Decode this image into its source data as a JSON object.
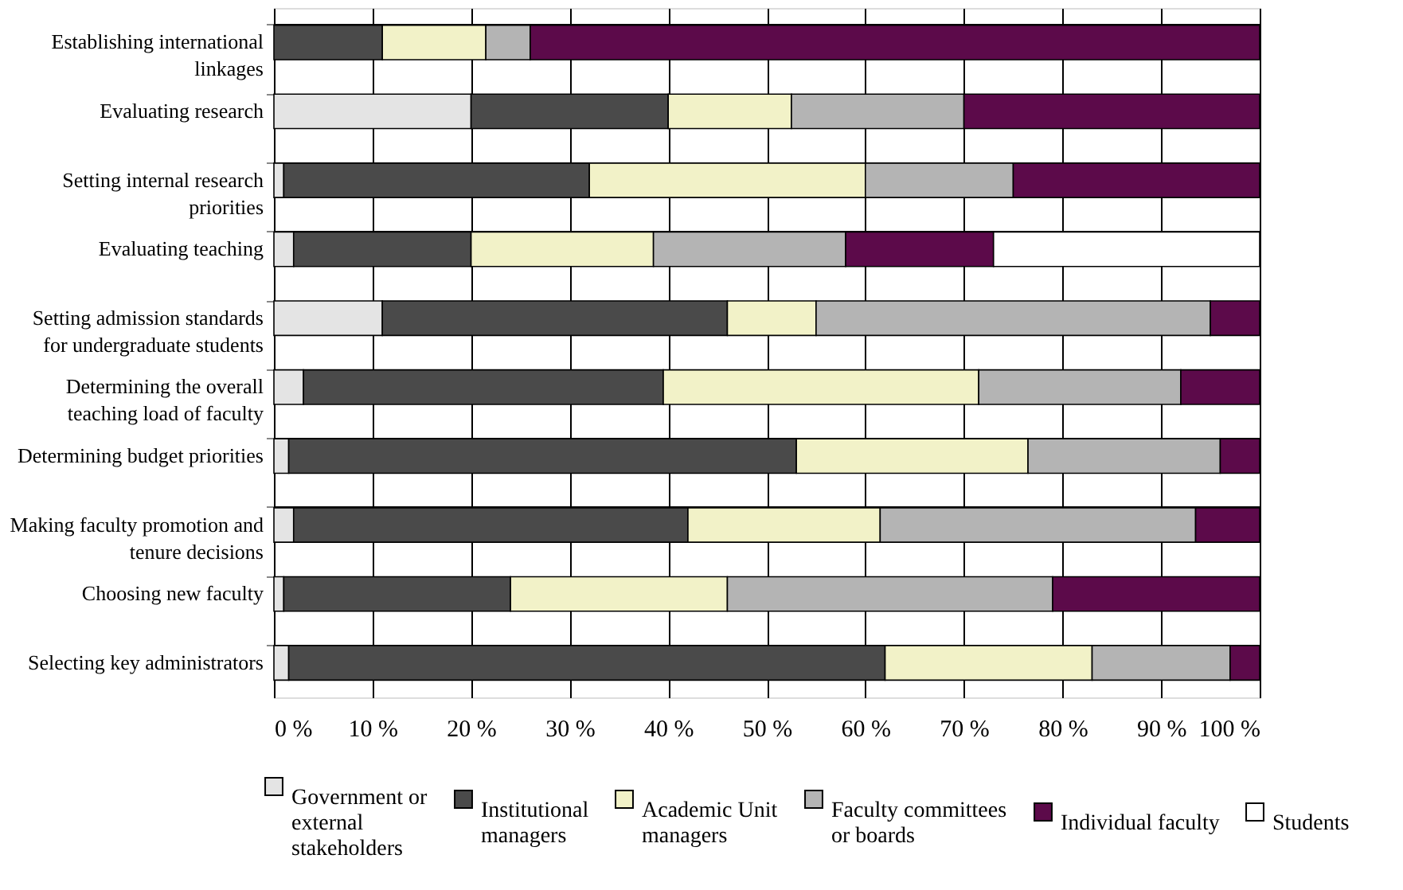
{
  "chart_data": {
    "type": "bar",
    "orientation": "horizontal",
    "stacked": true,
    "categories": [
      "Establishing international linkages",
      "Evaluating research",
      "Setting internal research priorities",
      "Evaluating teaching",
      "Setting admission standards for undergraduate students",
      "Determining the overall teaching load of faculty",
      "Determining budget priorities",
      "Making faculty promotion and tenure decisions",
      "Choosing new faculty",
      "Selecting key administrators"
    ],
    "series": [
      {
        "name": "Government or external stakeholders",
        "color": "#e4e4e4",
        "values": [
          0,
          20,
          1,
          2,
          11,
          3,
          1.5,
          2,
          1,
          1.5
        ]
      },
      {
        "name": "Institutional managers",
        "color": "#4a4a4a",
        "values": [
          11,
          20,
          31,
          18,
          35,
          36.5,
          51.5,
          40,
          23,
          60.5
        ]
      },
      {
        "name": "Academic Unit managers",
        "color": "#f2f2c8",
        "values": [
          10.5,
          12.5,
          28,
          18.5,
          9,
          32,
          23.5,
          19.5,
          22,
          21
        ]
      },
      {
        "name": "Faculty committees or boards",
        "color": "#b4b4b4",
        "values": [
          4.5,
          17.5,
          15,
          19.5,
          40,
          20.5,
          19.5,
          32,
          33,
          14
        ]
      },
      {
        "name": "Individual faculty",
        "color": "#5c0a4a",
        "values": [
          74,
          30,
          25,
          15,
          5,
          8,
          4,
          6.5,
          21,
          3
        ]
      },
      {
        "name": "Students",
        "color": "#ffffff",
        "values": [
          0,
          0,
          0,
          27,
          0,
          0,
          0,
          0,
          0,
          0
        ]
      }
    ],
    "xlim": [
      0,
      100
    ],
    "xticks": [
      {
        "value": 0,
        "label": "0 %"
      },
      {
        "value": 10,
        "label": "10 %"
      },
      {
        "value": 20,
        "label": "20 %"
      },
      {
        "value": 30,
        "label": "30 %"
      },
      {
        "value": 40,
        "label": "40 %"
      },
      {
        "value": 50,
        "label": "50 %"
      },
      {
        "value": 60,
        "label": "60 %"
      },
      {
        "value": 70,
        "label": "70 %"
      },
      {
        "value": 80,
        "label": "80 %"
      },
      {
        "value": 90,
        "label": "90 %"
      },
      {
        "value": 100,
        "label": "100 %"
      }
    ],
    "grid": true,
    "legend": "bottom"
  }
}
